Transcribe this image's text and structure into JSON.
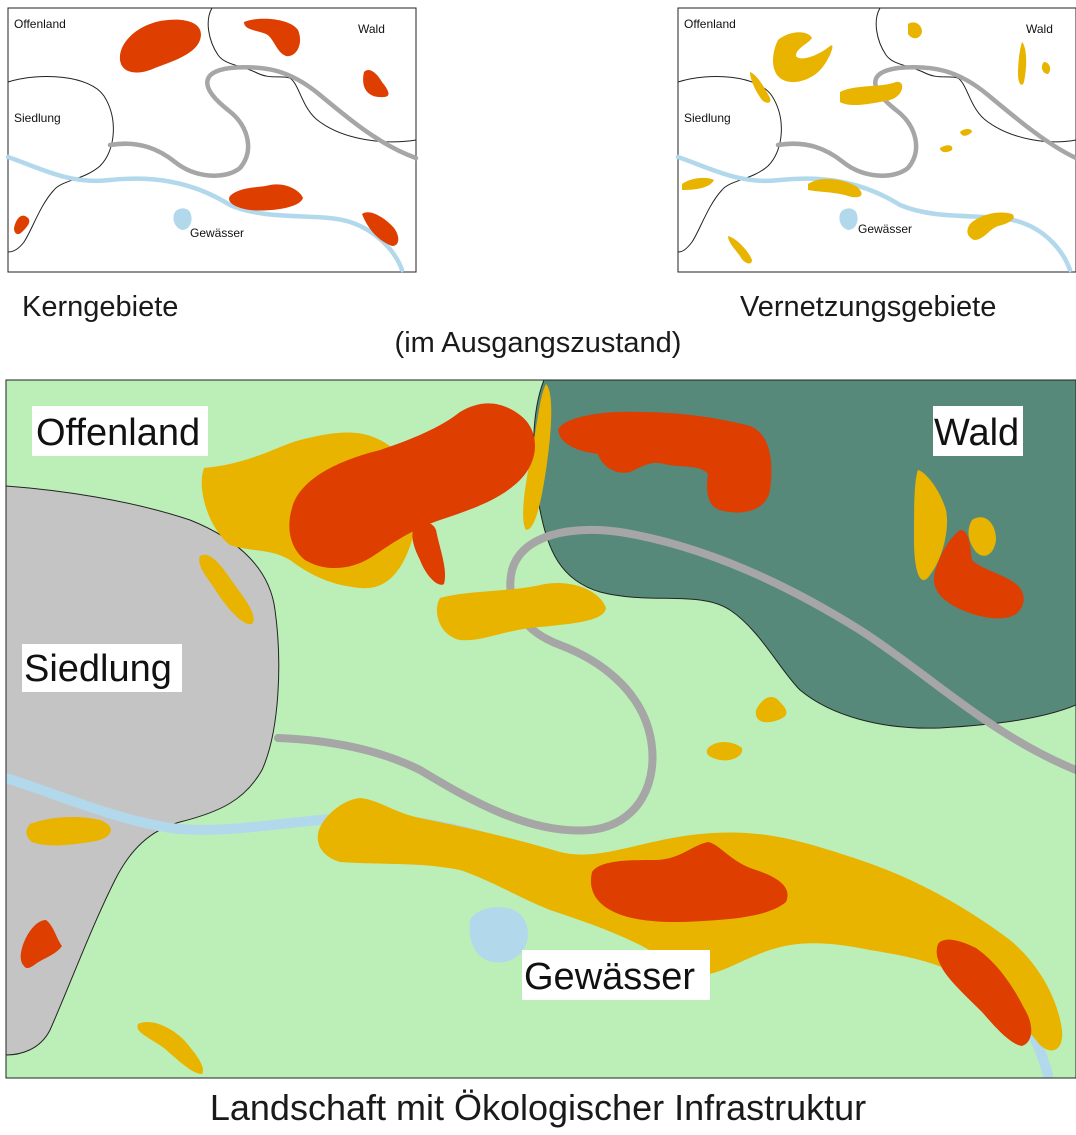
{
  "colors": {
    "kern": "#de3e00",
    "vernetzung": "#e8b400",
    "offenland": "#bcefb8",
    "wald": "#56897a",
    "siedlung": "#c4c4c4",
    "gewaesser": "#b2d8ec",
    "strasse": "#a6a6a6"
  },
  "small_maps": {
    "kern": {
      "labels": {
        "offenland": "Offenland",
        "wald": "Wald",
        "siedlung": "Siedlung",
        "gewaesser": "Gewässer"
      },
      "caption": "Kerngebiete"
    },
    "vernetzung": {
      "labels": {
        "offenland": "Offenland",
        "wald": "Wald",
        "siedlung": "Siedlung",
        "gewaesser": "Gewässer"
      },
      "caption": "Vernetzungsgebiete"
    },
    "shared_caption": "(im Ausgangszustand)"
  },
  "main_map": {
    "labels": {
      "offenland": "Offenland",
      "wald": "Wald",
      "siedlung": "Siedlung",
      "gewaesser": "Gewässer"
    },
    "caption": "Landschaft mit Ökologischer Infrastruktur"
  }
}
